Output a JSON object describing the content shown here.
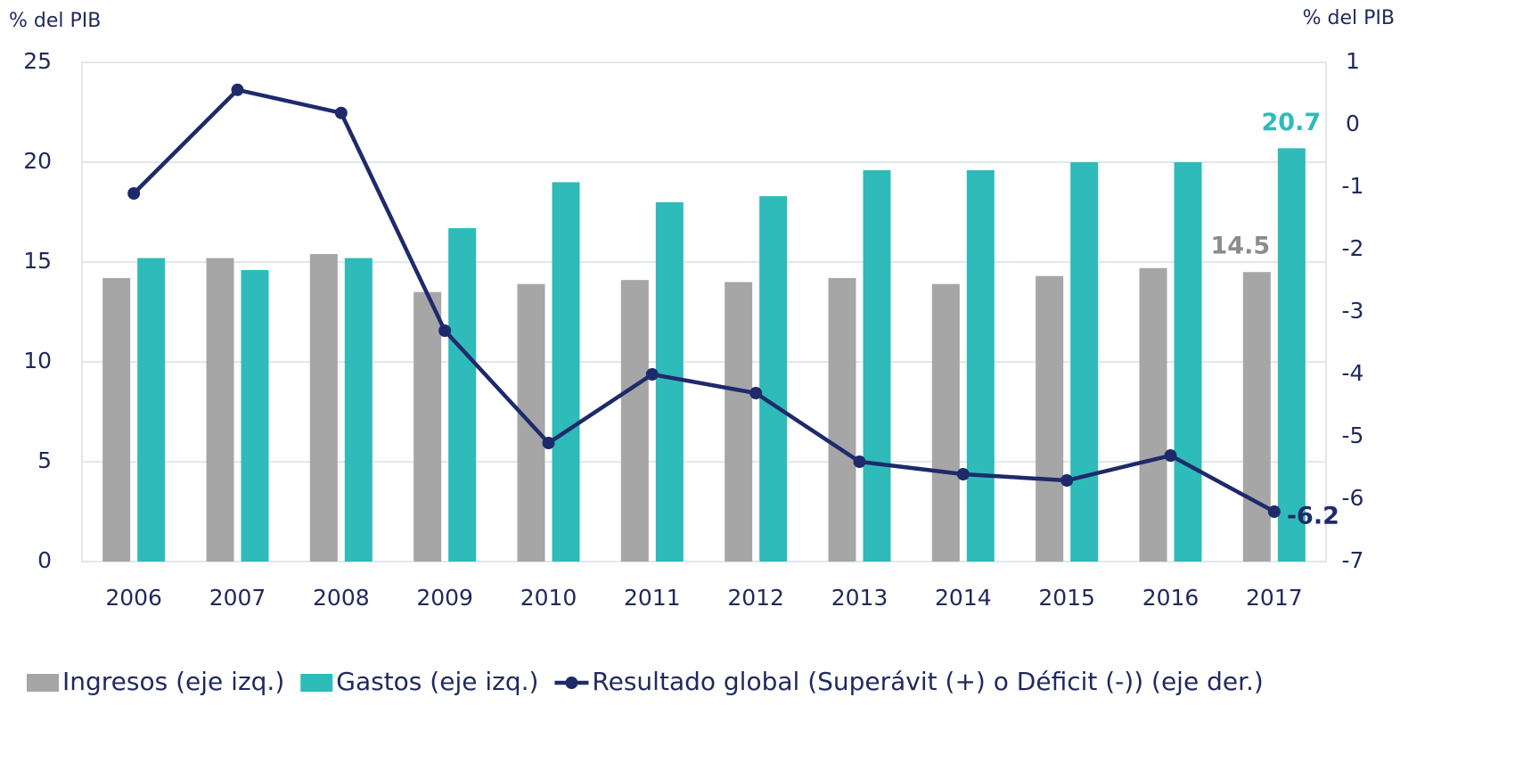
{
  "chart_data": {
    "type": "bar_line",
    "y_label": "% del PIB",
    "y2_label": "% del PIB",
    "categories": [
      "2006",
      "2007",
      "2008",
      "2009",
      "2010",
      "2011",
      "2012",
      "2013",
      "2014",
      "2015",
      "2016",
      "2017"
    ],
    "series": [
      {
        "name": "Ingresos (eje izq.)",
        "type": "bar",
        "color": "#a6a6a6",
        "values": [
          14.2,
          15.2,
          15.4,
          13.5,
          13.9,
          14.1,
          14.0,
          14.2,
          13.9,
          14.3,
          14.7,
          14.5
        ]
      },
      {
        "name": "Gastos (eje izq.)",
        "type": "bar",
        "color": "#2ebbb9",
        "values": [
          15.2,
          14.6,
          15.2,
          16.7,
          19.0,
          18.0,
          18.3,
          19.6,
          19.6,
          20.0,
          20.0,
          20.7
        ]
      },
      {
        "name": "Resultado global (Superávit (+) o Déficit (-)) (eje der.)",
        "type": "line",
        "axis": "y2",
        "color": "#1f2a6b",
        "values": [
          -1.1,
          0.56,
          0.19,
          -3.3,
          -5.1,
          -4.0,
          -4.3,
          -5.4,
          -5.6,
          -5.7,
          -5.3,
          -6.2
        ]
      }
    ],
    "data_labels": "last",
    "ylim": [
      0,
      25
    ],
    "yticks": [
      0,
      5,
      10,
      15,
      20,
      25
    ],
    "y2lim": [
      -7,
      1
    ],
    "y2ticks": [
      -7,
      -6,
      -5,
      -4,
      -3,
      -2,
      -1,
      0,
      1
    ],
    "grid": true,
    "legend": "bottom"
  }
}
